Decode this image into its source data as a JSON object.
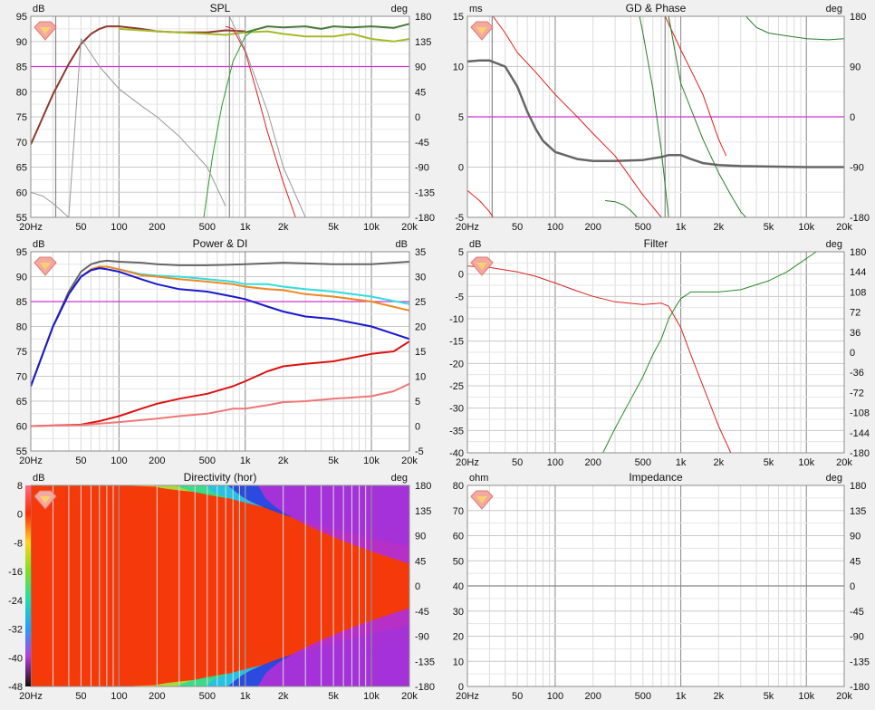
{
  "freq_ticks": [
    "20Hz",
    "50",
    "100",
    "200",
    "500",
    "1k",
    "2k",
    "5k",
    "10k",
    "20k"
  ],
  "chart_data": [
    {
      "id": "spl",
      "type": "line",
      "title": "SPL",
      "ylabel": "dB",
      "y2label": "deg",
      "xlim": [
        20,
        20000
      ],
      "ylim": [
        55,
        95
      ],
      "y2lim": [
        -180,
        180
      ],
      "yticks": [
        55,
        60,
        65,
        70,
        75,
        80,
        85,
        90,
        95
      ],
      "y2ticks": [
        -180,
        -135,
        -90,
        -45,
        0,
        45,
        90,
        135,
        180
      ],
      "series": [
        {
          "axis": "left",
          "color": "#8b3a2e",
          "width": 2,
          "x": [
            20,
            25,
            30,
            40,
            50,
            60,
            70,
            80,
            100,
            150,
            200,
            300,
            500,
            700,
            1000
          ],
          "y": [
            69.5,
            75,
            79.5,
            85.5,
            89.5,
            91.5,
            92.5,
            93,
            93,
            92.5,
            92,
            91.8,
            91.8,
            92.2,
            92
          ]
        },
        {
          "axis": "left",
          "color": "#a6ba2a",
          "width": 2,
          "x": [
            100,
            200,
            500,
            700,
            1000,
            1500,
            2000,
            3000,
            5000,
            7000,
            10000,
            15000,
            20000
          ],
          "y": [
            92.5,
            92,
            91.5,
            91.3,
            91.8,
            92,
            91.5,
            91,
            91,
            91.5,
            90.5,
            90,
            90.5
          ]
        },
        {
          "axis": "left",
          "color": "#4a7a3a",
          "width": 2,
          "x": [
            1000,
            1500,
            2000,
            3000,
            4000,
            5000,
            7000,
            10000,
            15000,
            20000
          ],
          "y": [
            91.8,
            93,
            92.8,
            93,
            92.5,
            93,
            92.8,
            93,
            92.7,
            93.5
          ]
        },
        {
          "axis": "left",
          "color": "#dd2020",
          "width": 1,
          "x": [
            700,
            800,
            1000,
            1200,
            1500,
            2000,
            2500
          ],
          "y": [
            93,
            92.5,
            88,
            81,
            72,
            62,
            55
          ]
        },
        {
          "axis": "left",
          "color": "#2a9a2a",
          "width": 1,
          "x": [
            470,
            550,
            650,
            800,
            1000,
            1200
          ],
          "y": [
            55,
            67,
            77,
            86,
            91,
            92.5
          ]
        },
        {
          "axis": "right",
          "color": "#999999",
          "width": 1,
          "x": [
            20,
            25,
            30,
            40,
            50,
            70,
            100,
            150,
            200,
            300,
            500,
            700
          ],
          "y": [
            -135,
            -142,
            -155,
            -180,
            140,
            90,
            50,
            20,
            0,
            -35,
            -90,
            -160
          ]
        },
        {
          "axis": "right",
          "color": "#999999",
          "width": 1,
          "x": [
            750,
            1000,
            1500,
            2000,
            3000
          ],
          "y": [
            180,
            120,
            10,
            -90,
            -180
          ]
        }
      ],
      "hlines": [
        {
          "axis": "left",
          "value": 85,
          "color": "#cc33cc"
        }
      ],
      "vlines": [
        {
          "x": 31.5,
          "color": "#888888"
        },
        {
          "x": 750,
          "color": "#888888"
        }
      ]
    },
    {
      "id": "gd",
      "type": "line",
      "title": "GD & Phase",
      "ylabel": "ms",
      "y2label": "deg",
      "xlim": [
        20,
        20000
      ],
      "ylim": [
        -5,
        15
      ],
      "y2lim": [
        -180,
        180
      ],
      "yticks": [
        -5,
        0,
        5,
        10,
        15
      ],
      "y2ticks": [
        -180,
        -90,
        0,
        90,
        180
      ],
      "series": [
        {
          "axis": "left",
          "color": "#666666",
          "width": 2.5,
          "x": [
            20,
            25,
            30,
            40,
            50,
            60,
            70,
            80,
            100,
            150,
            200,
            300,
            500,
            700,
            800,
            1000,
            1200,
            1500,
            2000,
            3000,
            5000,
            10000,
            20000
          ],
          "y": [
            10.5,
            10.6,
            10.6,
            10,
            8,
            5.5,
            3.8,
            2.6,
            1.5,
            0.8,
            0.6,
            0.6,
            0.7,
            1,
            1.2,
            1.2,
            0.8,
            0.4,
            0.2,
            0.1,
            0.05,
            0,
            0
          ]
        },
        {
          "axis": "right",
          "color": "#dd2020",
          "width": 1,
          "x": [
            20,
            25,
            30,
            32
          ],
          "y": [
            -132,
            -150,
            -170,
            -180
          ]
        },
        {
          "axis": "right",
          "color": "#dd2020",
          "width": 1,
          "x": [
            32,
            40,
            50,
            70,
            100,
            150,
            200,
            300,
            500,
            700
          ],
          "y": [
            180,
            150,
            115,
            80,
            40,
            0,
            -30,
            -70,
            -140,
            -180
          ]
        },
        {
          "axis": "right",
          "color": "#dd2020",
          "width": 1,
          "x": [
            750,
            1000,
            1500,
            2000,
            2300
          ],
          "y": [
            180,
            120,
            40,
            -40,
            -70
          ]
        },
        {
          "axis": "right",
          "color": "#2a7a2a",
          "width": 1,
          "x": [
            250,
            300,
            350,
            400,
            450
          ],
          "y": [
            -150,
            -152,
            -158,
            -168,
            -180
          ]
        },
        {
          "axis": "right",
          "color": "#2a7a2a",
          "width": 1,
          "x": [
            470,
            500,
            600,
            700,
            800
          ],
          "y": [
            180,
            150,
            50,
            -60,
            -180
          ]
        },
        {
          "axis": "right",
          "color": "#2a7a2a",
          "width": 1,
          "x": [
            800,
            1000,
            1500,
            2000,
            2500,
            3000,
            3300
          ],
          "y": [
            180,
            60,
            -40,
            -100,
            -140,
            -170,
            -180
          ]
        },
        {
          "axis": "right",
          "color": "#2a7a2a",
          "width": 1,
          "x": [
            3300,
            4000,
            5000,
            7000,
            10000,
            15000,
            20000
          ],
          "y": [
            180,
            160,
            150,
            145,
            140,
            138,
            140
          ]
        }
      ],
      "hlines": [
        {
          "axis": "left",
          "value": 5,
          "color": "#cc33cc"
        }
      ],
      "vlines": [
        {
          "x": 31.5,
          "color": "#888888"
        },
        {
          "x": 750,
          "color": "#888888"
        }
      ]
    },
    {
      "id": "power",
      "type": "line",
      "title": "Power & DI",
      "ylabel": "dB",
      "y2label": "dB",
      "xlim": [
        20,
        20000
      ],
      "ylim": [
        55,
        95
      ],
      "y2lim": [
        -5,
        35
      ],
      "yticks": [
        55,
        60,
        65,
        70,
        75,
        80,
        85,
        90,
        95
      ],
      "y2ticks": [
        -5,
        0,
        5,
        10,
        15,
        20,
        25,
        30,
        35
      ],
      "series": [
        {
          "axis": "left",
          "color": "#666666",
          "width": 2,
          "x": [
            20,
            30,
            40,
            50,
            60,
            70,
            80,
            100,
            150,
            200,
            300,
            500,
            1000,
            2000,
            5000,
            10000,
            20000
          ],
          "y": [
            68,
            80,
            87,
            91,
            92.5,
            93,
            93.2,
            93,
            92.8,
            92.5,
            92.3,
            92.3,
            92.5,
            92.8,
            92.5,
            92.5,
            93
          ]
        },
        {
          "axis": "left",
          "color": "#33dddd",
          "width": 2,
          "x": [
            20,
            30,
            40,
            50,
            60,
            70,
            80,
            100,
            150,
            200,
            300,
            500,
            800,
            1000,
            1500,
            2000,
            3000,
            5000,
            10000,
            20000
          ],
          "y": [
            68,
            80,
            86.5,
            90,
            91.5,
            92,
            92,
            91.5,
            90.5,
            90.2,
            90,
            89.5,
            89,
            88.5,
            88.5,
            88,
            87.5,
            87,
            86,
            84.5
          ]
        },
        {
          "axis": "left",
          "color": "#ee8822",
          "width": 2,
          "x": [
            20,
            30,
            40,
            50,
            60,
            70,
            80,
            100,
            150,
            200,
            300,
            500,
            800,
            1000,
            1500,
            2000,
            3000,
            5000,
            10000,
            20000
          ],
          "y": [
            68,
            80,
            86.5,
            90,
            91.5,
            92,
            92,
            91.5,
            90.3,
            90,
            89.5,
            89,
            88.5,
            88,
            87.5,
            87.3,
            86.5,
            86,
            85,
            83.2
          ]
        },
        {
          "axis": "left",
          "color": "#1a1acc",
          "width": 2,
          "x": [
            20,
            30,
            40,
            50,
            60,
            70,
            80,
            100,
            150,
            200,
            300,
            500,
            800,
            1000,
            1500,
            2000,
            3000,
            5000,
            10000,
            20000
          ],
          "y": [
            68,
            80,
            86.5,
            90,
            91.3,
            91.7,
            91.5,
            91,
            89.5,
            88.5,
            87.5,
            87,
            86,
            85.5,
            84,
            83,
            82,
            81.5,
            80,
            77.5
          ]
        },
        {
          "axis": "right",
          "color": "#dd1111",
          "width": 2,
          "x": [
            20,
            50,
            70,
            100,
            150,
            200,
            300,
            500,
            800,
            1000,
            1500,
            2000,
            3000,
            5000,
            10000,
            15000,
            20000
          ],
          "y": [
            0,
            0.3,
            1,
            2,
            3.5,
            4.5,
            5.5,
            6.5,
            8,
            9,
            11,
            12,
            12.5,
            13,
            14.5,
            15,
            17
          ]
        },
        {
          "axis": "right",
          "color": "#ee7777",
          "width": 2,
          "x": [
            20,
            50,
            100,
            200,
            300,
            500,
            800,
            1000,
            1500,
            2000,
            3000,
            5000,
            10000,
            15000,
            20000
          ],
          "y": [
            0,
            0.2,
            0.8,
            1.5,
            2,
            2.5,
            3.5,
            3.5,
            4.2,
            4.8,
            5,
            5.5,
            6,
            7,
            8.5
          ]
        }
      ],
      "hlines": [
        {
          "axis": "left",
          "value": 85,
          "color": "#cc33cc"
        }
      ],
      "vlines": []
    },
    {
      "id": "filter",
      "type": "line",
      "title": "Filter",
      "ylabel": "dB",
      "y2label": "deg",
      "xlim": [
        20,
        20000
      ],
      "ylim": [
        -40,
        5
      ],
      "y2lim": [
        -180,
        180
      ],
      "yticks": [
        -40,
        -35,
        -30,
        -25,
        -20,
        -15,
        -10,
        -5,
        0,
        5
      ],
      "y2ticks": [
        -180,
        -144,
        -108,
        -72,
        -36,
        0,
        36,
        72,
        108,
        144,
        180
      ],
      "series": [
        {
          "axis": "left",
          "color": "#dd2020",
          "width": 1,
          "x": [
            20,
            30,
            50,
            70,
            100,
            150,
            200,
            300,
            500,
            700,
            800,
            1000,
            1200,
            1500,
            2000,
            2500
          ],
          "y": [
            1.8,
            1.5,
            0.5,
            -0.5,
            -2,
            -3.8,
            -5,
            -6.2,
            -6.8,
            -6.5,
            -7.2,
            -12,
            -18,
            -25,
            -34,
            -40
          ]
        },
        {
          "axis": "left",
          "color": "#2a8a2a",
          "width": 1,
          "x": [
            240,
            300,
            400,
            500,
            600,
            700,
            800,
            900,
            1000,
            1200,
            1500,
            2000,
            3000,
            5000,
            7000,
            10000,
            12000
          ],
          "y": [
            -40,
            -34.5,
            -28,
            -23,
            -18,
            -14.5,
            -10,
            -7.5,
            -5.5,
            -4,
            -4,
            -4,
            -3.5,
            -1.5,
            0.5,
            3.5,
            5
          ]
        }
      ],
      "hlines": [],
      "vlines": []
    },
    {
      "id": "directivity",
      "type": "heatmap",
      "title": "Directivity (hor)",
      "ylabel": "dB",
      "y2label": "deg",
      "xlim": [
        20,
        20000
      ],
      "y2lim": [
        -180,
        180
      ],
      "y2ticks": [
        -180,
        -135,
        -90,
        -45,
        0,
        45,
        90,
        135,
        180
      ],
      "colorbar": {
        "min": -48,
        "max": 8,
        "ticks": [
          -48,
          -40,
          -32,
          -24,
          -16,
          -8,
          0,
          8
        ]
      },
      "hlines": [],
      "vlines": []
    },
    {
      "id": "impedance",
      "type": "line",
      "title": "Impedance",
      "ylabel": "ohm",
      "y2label": "deg",
      "xlim": [
        20,
        20000
      ],
      "ylim": [
        0,
        80
      ],
      "y2lim": [
        -180,
        180
      ],
      "yticks": [
        0,
        10,
        20,
        30,
        40,
        50,
        60,
        70,
        80
      ],
      "y2ticks": [
        -180,
        -135,
        -90,
        -45,
        0,
        45,
        90,
        135,
        180
      ],
      "series": [],
      "hlines": [
        {
          "axis": "left",
          "value": 40,
          "color": "#888888"
        }
      ],
      "vlines": []
    }
  ]
}
